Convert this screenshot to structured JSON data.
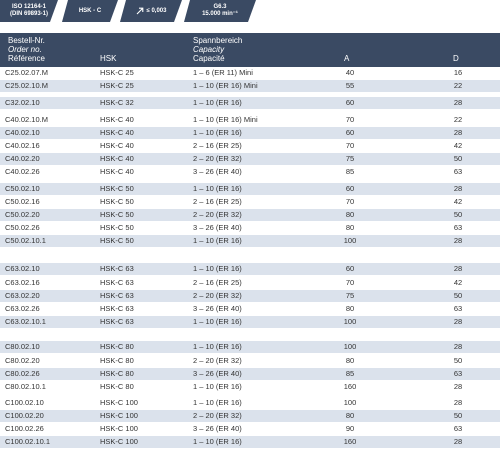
{
  "badges": {
    "standard_line1": "ISO 12164-1",
    "standard_line2": "(DIN 69893-1)",
    "interface": "HSK - C",
    "runout": "≤ 0,003",
    "balance_line1": "G6.3",
    "balance_line2": "15.000 min⁻¹"
  },
  "header": {
    "order_de": "Bestell-Nr.",
    "order_en": "Order no.",
    "order_fr": "Référence",
    "hsk": "HSK",
    "cap_de": "Spannbereich",
    "cap_en": "Capacity",
    "cap_fr": "Capacité",
    "a": "A",
    "d": "D"
  },
  "rows": [
    {
      "order": "C25.02.07.M",
      "hsk": "HSK-C 25",
      "cap": "1 – 6 (ER 11) Mini",
      "a": "40",
      "d": "16"
    },
    {
      "order": "C25.02.10.M",
      "hsk": "HSK-C 25",
      "cap": "1 – 10 (ER 16) Mini",
      "a": "55",
      "d": "22"
    },
    {
      "order": "C32.02.10",
      "hsk": "HSK-C 32",
      "cap": "1 – 10 (ER 16)",
      "a": "60",
      "d": "28"
    },
    {
      "order": "C40.02.10.M",
      "hsk": "HSK-C 40",
      "cap": "1 – 10 (ER 16) Mini",
      "a": "70",
      "d": "22"
    },
    {
      "order": "C40.02.10",
      "hsk": "HSK-C 40",
      "cap": "1 – 10 (ER 16)",
      "a": "60",
      "d": "28"
    },
    {
      "order": "C40.02.16",
      "hsk": "HSK-C 40",
      "cap": "2 – 16 (ER 25)",
      "a": "70",
      "d": "42"
    },
    {
      "order": "C40.02.20",
      "hsk": "HSK-C 40",
      "cap": "2 – 20 (ER 32)",
      "a": "75",
      "d": "50"
    },
    {
      "order": "C40.02.26",
      "hsk": "HSK-C 40",
      "cap": "3 – 26 (ER 40)",
      "a": "85",
      "d": "63"
    },
    {
      "order": "C50.02.10",
      "hsk": "HSK-C 50",
      "cap": "1 – 10 (ER 16)",
      "a": "60",
      "d": "28"
    },
    {
      "order": "C50.02.16",
      "hsk": "HSK-C 50",
      "cap": "2 – 16 (ER 25)",
      "a": "70",
      "d": "42"
    },
    {
      "order": "C50.02.20",
      "hsk": "HSK-C 50",
      "cap": "2 – 20 (ER 32)",
      "a": "80",
      "d": "50"
    },
    {
      "order": "C50.02.26",
      "hsk": "HSK-C 50",
      "cap": "3 – 26 (ER 40)",
      "a": "80",
      "d": "63"
    },
    {
      "order": "C50.02.10.1",
      "hsk": "HSK-C 50",
      "cap": "1 – 10 (ER 16)",
      "a": "100",
      "d": "28"
    },
    {
      "order": "C63.02.10",
      "hsk": "HSK-C 63",
      "cap": "1 – 10 (ER 16)",
      "a": "60",
      "d": "28"
    },
    {
      "order": "C63.02.16",
      "hsk": "HSK-C 63",
      "cap": "2 – 16 (ER 25)",
      "a": "70",
      "d": "42"
    },
    {
      "order": "C63.02.20",
      "hsk": "HSK-C 63",
      "cap": "2 – 20 (ER 32)",
      "a": "75",
      "d": "50"
    },
    {
      "order": "C63.02.26",
      "hsk": "HSK-C 63",
      "cap": "3 – 26 (ER 40)",
      "a": "80",
      "d": "63"
    },
    {
      "order": "C63.02.10.1",
      "hsk": "HSK-C 63",
      "cap": "1 – 10 (ER 16)",
      "a": "100",
      "d": "28"
    },
    {
      "order": "C80.02.10",
      "hsk": "HSK-C 80",
      "cap": "1 – 10 (ER 16)",
      "a": "100",
      "d": "28"
    },
    {
      "order": "C80.02.20",
      "hsk": "HSK-C 80",
      "cap": "2 – 20 (ER 32)",
      "a": "80",
      "d": "50"
    },
    {
      "order": "C80.02.26",
      "hsk": "HSK-C 80",
      "cap": "3 – 26 (ER 40)",
      "a": "85",
      "d": "63"
    },
    {
      "order": "C80.02.10.1",
      "hsk": "HSK-C 80",
      "cap": "1 – 10 (ER 16)",
      "a": "160",
      "d": "28"
    },
    {
      "order": "C100.02.10",
      "hsk": "HSK-C 100",
      "cap": "1 – 10 (ER 16)",
      "a": "100",
      "d": "28"
    },
    {
      "order": "C100.02.20",
      "hsk": "HSK-C 100",
      "cap": "2 – 20 (ER 32)",
      "a": "80",
      "d": "50"
    },
    {
      "order": "C100.02.26",
      "hsk": "HSK-C 100",
      "cap": "3 – 26 (ER 40)",
      "a": "90",
      "d": "63"
    },
    {
      "order": "C100.02.10.1",
      "hsk": "HSK-C 100",
      "cap": "1 – 10 (ER 16)",
      "a": "160",
      "d": "28"
    }
  ]
}
